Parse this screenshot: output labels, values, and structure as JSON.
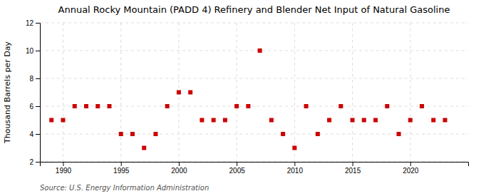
{
  "chart_data": {
    "type": "scatter",
    "title": "Annual Rocky Mountain (PADD 4) Refinery and Blender Net Input of Natural Gasoline",
    "ylabel": "Thousand Barrels per Day",
    "source": "Source: U.S. Energy Information Administration",
    "x": [
      1989,
      1990,
      1991,
      1992,
      1993,
      1994,
      1995,
      1996,
      1997,
      1998,
      1999,
      2000,
      2001,
      2002,
      2003,
      2004,
      2005,
      2006,
      2007,
      2008,
      2009,
      2010,
      2011,
      2012,
      2013,
      2014,
      2015,
      2016,
      2017,
      2018,
      2019,
      2020,
      2021,
      2022,
      2023
    ],
    "values": [
      5,
      5,
      6,
      6,
      6,
      6,
      4,
      4,
      3,
      4,
      6,
      7,
      7,
      5,
      5,
      5,
      6,
      6,
      10,
      5,
      4,
      3,
      6,
      4,
      5,
      6,
      5,
      5,
      5,
      6,
      4,
      5,
      6,
      5,
      5
    ],
    "xlim": [
      1988,
      2025
    ],
    "ylim": [
      2,
      12
    ],
    "xticks": [
      1990,
      1995,
      2000,
      2005,
      2010,
      2015,
      2020
    ],
    "yticks": [
      2,
      4,
      6,
      8,
      10,
      12
    ],
    "color": "#cc0000",
    "marker": "square",
    "grid": true
  }
}
